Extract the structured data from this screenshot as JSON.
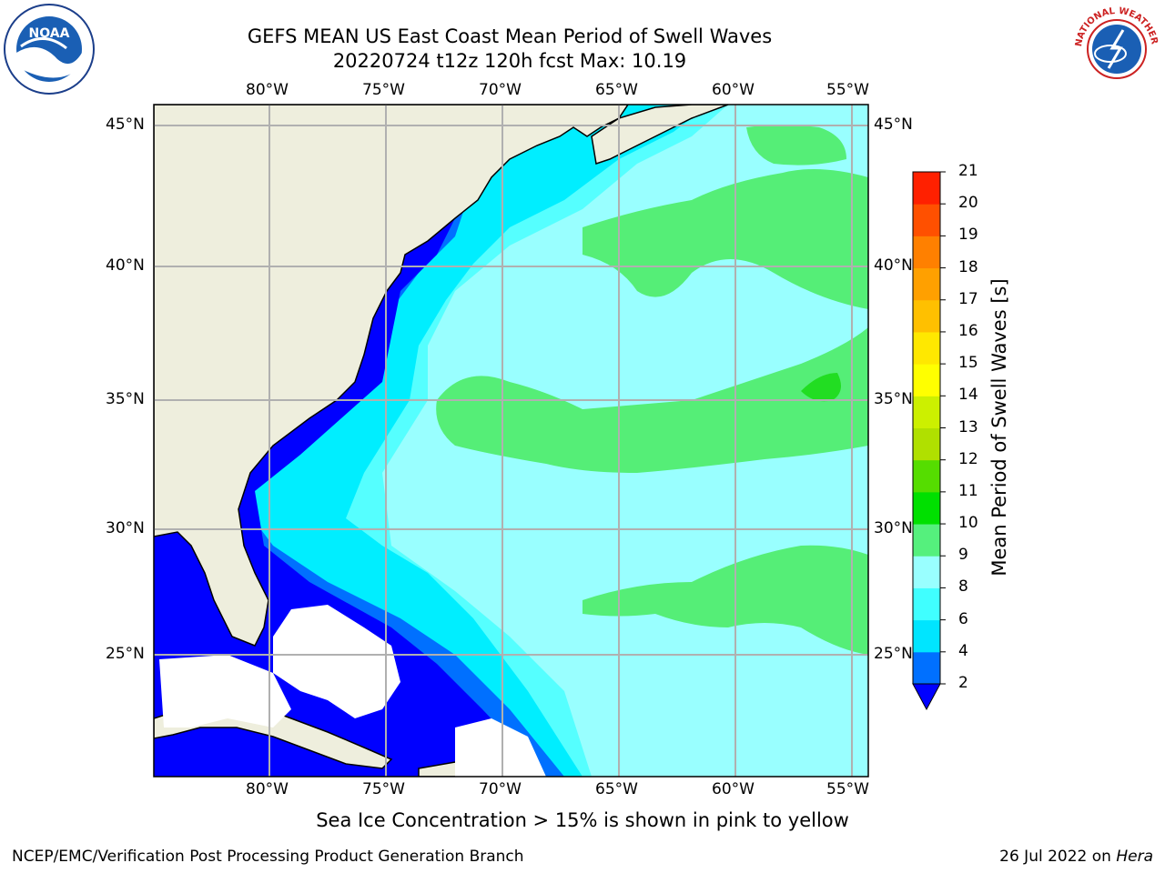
{
  "title": {
    "line1": "GEFS MEAN US East Coast Mean Period of Swell Waves",
    "line2": "20220724 t12z 120h fcst   Max: 10.19"
  },
  "subtitle": "Sea Ice Concentration > 15% is shown in pink to yellow",
  "credits": {
    "left": "NCEP/EMC/Verification Post Processing Product Generation Branch",
    "right_date": "26 Jul 2022 on ",
    "right_host": "Hera"
  },
  "logos": {
    "left": {
      "icon": "noaa-logo",
      "text": "NOAA"
    },
    "right": {
      "icon": "nws-logo",
      "text": "NATIONAL WEATHER SERVICE"
    }
  },
  "map": {
    "lon_labels": [
      "80°W",
      "75°W",
      "70°W",
      "65°W",
      "60°W",
      "55°W"
    ],
    "lat_labels": [
      "45°N",
      "40°N",
      "35°N",
      "30°N",
      "25°N"
    ],
    "land_color": "#eeeedd",
    "grid_color": "#b0b0b0"
  },
  "colorbar": {
    "label": "Mean Period of Swell Waves [s]",
    "ticks": [
      "2",
      "4",
      "6",
      "8",
      "9",
      "10",
      "11",
      "12",
      "13",
      "14",
      "15",
      "16",
      "17",
      "18",
      "19",
      "20",
      "21"
    ],
    "colors": [
      "#0070ff",
      "#00e5ff",
      "#40ffff",
      "#99ffff",
      "#55f07d",
      "#00e000",
      "#55dd00",
      "#b0e000",
      "#ccf000",
      "#ffff00",
      "#ffe800",
      "#ffc000",
      "#ffa000",
      "#ff8000",
      "#ff5000",
      "#ff2000"
    ],
    "extend_color": "#0000ff"
  },
  "legend_colors": {
    "c2": "#0000ff",
    "c4": "#0070ff",
    "c6": "#00eeff",
    "c8": "#55ffff",
    "c9": "#99ffff",
    "c10": "#55ee77",
    "c11": "#22dd22"
  }
}
